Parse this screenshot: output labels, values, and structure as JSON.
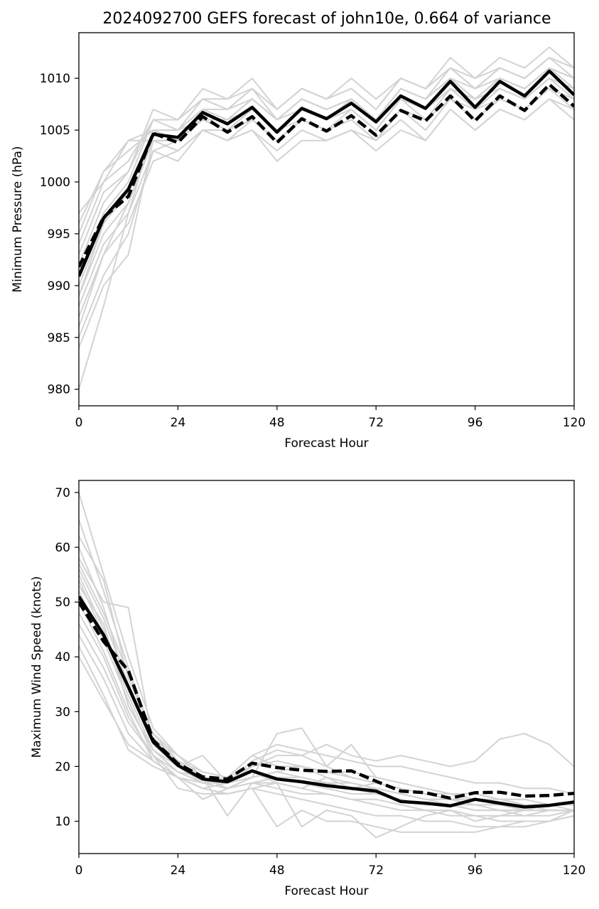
{
  "figure": {
    "title": "2024092700 GEFS forecast of john10e, 0.664 of variance"
  },
  "chart_data": [
    {
      "type": "line",
      "title": "2024092700 GEFS forecast of john10e, 0.664 of variance",
      "xlabel": "Forecast Hour",
      "ylabel": "Minimum Pressure (hPa)",
      "xlim": [
        0,
        120
      ],
      "ylim": [
        978.4,
        1014.4
      ],
      "xticks": [
        0,
        24,
        48,
        72,
        96,
        120
      ],
      "yticks": [
        980,
        985,
        990,
        995,
        1000,
        1005,
        1010
      ],
      "grid": false,
      "colors": {
        "members": "#d3d3d3",
        "mean": "#000000",
        "control": "#000000"
      },
      "x": [
        0,
        6,
        12,
        18,
        24,
        30,
        36,
        42,
        48,
        54,
        60,
        66,
        72,
        78,
        84,
        90,
        96,
        102,
        108,
        114,
        120
      ],
      "members": [
        [
          980,
          988,
          997,
          1005,
          1004,
          1006,
          1005,
          1006,
          1004,
          1006,
          1005,
          1006,
          1004,
          1007,
          1006,
          1008,
          1006,
          1008,
          1007,
          1009,
          1007
        ],
        [
          984,
          990,
          993,
          1004,
          1003,
          1005,
          1004,
          1005,
          1002,
          1004,
          1004,
          1005,
          1003,
          1005,
          1004,
          1007,
          1005,
          1007,
          1006,
          1008,
          1006
        ],
        [
          985,
          991,
          995,
          1003,
          1002,
          1005,
          1004,
          1005,
          1003,
          1005,
          1004,
          1005,
          1004,
          1006,
          1004,
          1007,
          1005,
          1007,
          1006,
          1008,
          1007
        ],
        [
          987,
          993,
          996,
          1002,
          1003,
          1005,
          1005,
          1006,
          1004,
          1006,
          1005,
          1006,
          1004,
          1007,
          1005,
          1008,
          1006,
          1008,
          1007,
          1009,
          1008
        ],
        [
          988,
          994,
          997,
          1003,
          1004,
          1006,
          1005,
          1007,
          1005,
          1007,
          1006,
          1007,
          1005,
          1008,
          1007,
          1009,
          1007,
          1009,
          1008,
          1010,
          1008
        ],
        [
          989,
          995,
          998,
          1004,
          1004,
          1007,
          1006,
          1007,
          1005,
          1007,
          1006,
          1007,
          1005,
          1008,
          1007,
          1010,
          1008,
          1010,
          1009,
          1011,
          1009
        ],
        [
          990,
          996,
          999,
          1005,
          1005,
          1007,
          1006,
          1008,
          1006,
          1008,
          1007,
          1008,
          1006,
          1009,
          1008,
          1010,
          1008,
          1010,
          1009,
          1011,
          1010
        ],
        [
          991,
          997,
          1000,
          1006,
          1005,
          1008,
          1007,
          1008,
          1006,
          1008,
          1007,
          1008,
          1006,
          1009,
          1008,
          1011,
          1009,
          1011,
          1010,
          1012,
          1010
        ],
        [
          992,
          998,
          1001,
          1006,
          1006,
          1008,
          1007,
          1009,
          1007,
          1009,
          1008,
          1009,
          1007,
          1010,
          1009,
          1011,
          1009,
          1011,
          1010,
          1012,
          1011
        ],
        [
          993,
          999,
          1001,
          1007,
          1006,
          1009,
          1008,
          1009,
          1007,
          1009,
          1008,
          1010,
          1008,
          1010,
          1009,
          1012,
          1010,
          1012,
          1011,
          1013,
          1011
        ],
        [
          994,
          1000,
          1002,
          1006,
          1006,
          1008,
          1008,
          1010,
          1007,
          1009,
          1008,
          1009,
          1007,
          1010,
          1009,
          1011,
          1010,
          1011,
          1010,
          1012,
          1011
        ],
        [
          995,
          1001,
          1003,
          1005,
          1005,
          1007,
          1007,
          1009,
          1006,
          1008,
          1007,
          1008,
          1006,
          1009,
          1008,
          1010,
          1009,
          1010,
          1009,
          1011,
          1010
        ],
        [
          996,
          1001,
          1004,
          1005,
          1005,
          1006,
          1006,
          1008,
          1006,
          1007,
          1006,
          1008,
          1006,
          1009,
          1008,
          1010,
          1008,
          1010,
          1009,
          1011,
          1009
        ],
        [
          997,
          1000,
          1004,
          1004,
          1004,
          1006,
          1005,
          1007,
          1005,
          1007,
          1006,
          1007,
          1005,
          1008,
          1007,
          1009,
          1008,
          1009,
          1008,
          1010,
          1009
        ],
        [
          986,
          993,
          998,
          1004,
          1003,
          1005,
          1004,
          1006,
          1004,
          1006,
          1005,
          1006,
          1004,
          1007,
          1006,
          1008,
          1007,
          1008,
          1007,
          1009,
          1008
        ],
        [
          989,
          996,
          999,
          1004,
          1004,
          1006,
          1005,
          1007,
          1005,
          1006,
          1005,
          1007,
          1005,
          1008,
          1006,
          1009,
          1007,
          1009,
          1008,
          1010,
          1008
        ]
      ],
      "series": [
        {
          "name": "",
          "style": "solid",
          "values": [
            990.9,
            996.5,
            999.3,
            1004.6,
            1004.3,
            1006.7,
            1005.6,
            1007.2,
            1004.8,
            1007.1,
            1006.1,
            1007.6,
            1005.8,
            1008.3,
            1007.1,
            1009.7,
            1007.2,
            1009.7,
            1008.3,
            1010.7,
            1008.4
          ]
        },
        {
          "name": "",
          "style": "dashed",
          "values": [
            991.8,
            996.6,
            998.6,
            1004.7,
            1003.8,
            1006.3,
            1004.8,
            1006.3,
            1003.8,
            1006.1,
            1004.9,
            1006.4,
            1004.5,
            1006.9,
            1005.9,
            1008.3,
            1005.9,
            1008.3,
            1006.9,
            1009.4,
            1007.3
          ]
        }
      ]
    },
    {
      "type": "line",
      "title": "",
      "xlabel": "Forecast Hour",
      "ylabel": "Maximum Wind Speed (knots)",
      "xlim": [
        0,
        120
      ],
      "ylim": [
        4.1,
        72.2
      ],
      "xticks": [
        0,
        24,
        48,
        72,
        96,
        120
      ],
      "yticks": [
        10,
        20,
        30,
        40,
        50,
        60,
        70
      ],
      "grid": false,
      "colors": {
        "members": "#d3d3d3",
        "mean": "#000000",
        "control": "#000000"
      },
      "x": [
        0,
        6,
        12,
        18,
        24,
        30,
        36,
        42,
        48,
        54,
        60,
        66,
        72,
        78,
        84,
        90,
        96,
        102,
        108,
        114,
        120
      ],
      "members": [
        [
          70,
          55,
          40,
          27,
          22,
          18,
          17,
          19,
          17,
          16,
          15,
          14,
          14,
          13,
          12,
          12,
          11,
          11,
          11,
          12,
          12
        ],
        [
          65,
          52,
          38,
          25,
          20,
          17,
          16,
          18,
          26,
          27,
          20,
          18,
          17,
          16,
          15,
          14,
          14,
          13,
          13,
          13,
          12
        ],
        [
          62,
          54,
          36,
          26,
          21,
          19,
          18,
          22,
          24,
          23,
          22,
          21,
          20,
          20,
          19,
          18,
          17,
          17,
          16,
          16,
          15
        ],
        [
          60,
          49,
          34,
          25,
          22,
          18,
          17,
          21,
          23,
          22,
          24,
          22,
          21,
          22,
          21,
          20,
          21,
          25,
          26,
          24,
          20
        ],
        [
          58,
          50,
          49,
          24,
          20,
          17,
          17,
          20,
          22,
          22,
          20,
          24,
          18,
          17,
          16,
          15,
          15,
          14,
          14,
          13,
          13
        ],
        [
          56,
          47,
          35,
          25,
          21,
          18,
          17,
          19,
          18,
          17,
          17,
          16,
          15,
          14,
          13,
          13,
          12,
          12,
          11,
          11,
          12
        ],
        [
          55,
          45,
          34,
          24,
          20,
          18,
          16,
          18,
          19,
          20,
          18,
          17,
          16,
          15,
          14,
          14,
          13,
          13,
          12,
          12,
          12
        ],
        [
          54,
          44,
          33,
          23,
          19,
          17,
          16,
          17,
          16,
          15,
          15,
          14,
          13,
          12,
          12,
          11,
          11,
          10,
          10,
          10,
          11
        ],
        [
          52,
          43,
          32,
          22,
          18,
          16,
          15,
          16,
          15,
          14,
          13,
          12,
          11,
          11,
          10,
          10,
          9,
          9,
          9,
          10,
          11
        ],
        [
          50,
          41,
          30,
          21,
          18,
          16,
          15,
          16,
          9,
          12,
          10,
          10,
          9,
          8,
          8,
          8,
          8,
          9,
          10,
          10,
          12
        ],
        [
          48,
          40,
          29,
          22,
          16,
          15,
          15,
          16,
          17,
          9,
          12,
          11,
          7,
          9,
          11,
          12,
          10,
          11,
          12,
          13,
          13
        ],
        [
          46,
          38,
          28,
          22,
          19,
          18,
          11,
          17,
          18,
          18,
          17,
          16,
          17,
          16,
          15,
          14,
          14,
          13,
          13,
          12,
          12
        ],
        [
          44,
          36,
          26,
          21,
          18,
          14,
          16,
          17,
          17,
          16,
          18,
          16,
          16,
          15,
          14,
          13,
          13,
          12,
          12,
          12,
          12
        ],
        [
          42,
          33,
          23,
          20,
          18,
          17,
          18,
          22,
          20,
          20,
          19,
          19,
          18,
          17,
          16,
          15,
          15,
          14,
          14,
          13,
          13
        ],
        [
          40,
          32,
          24,
          21,
          18,
          16,
          17,
          19,
          18,
          17,
          16,
          15,
          15,
          14,
          13,
          13,
          12,
          12,
          12,
          12,
          12
        ],
        [
          57,
          48,
          37,
          26,
          22,
          19,
          18,
          20,
          21,
          20,
          19,
          18,
          17,
          16,
          15,
          15,
          14,
          14,
          13,
          13,
          13
        ],
        [
          53,
          46,
          31,
          23,
          20,
          22,
          17,
          18,
          19,
          18,
          17,
          17,
          16,
          15,
          14,
          14,
          13,
          13,
          12,
          12,
          12
        ]
      ],
      "series": [
        {
          "name": "",
          "style": "solid",
          "values": [
            51,
            44,
            34.5,
            24.5,
            20.2,
            17.7,
            17.2,
            19.2,
            17.7,
            17.2,
            16.5,
            16,
            15.5,
            13.6,
            13.3,
            12.8,
            14,
            13.3,
            12.6,
            12.9,
            13.5
          ]
        },
        {
          "name": "",
          "style": "dashed",
          "values": [
            50,
            42.8,
            37.5,
            24.8,
            20.5,
            18.1,
            17.7,
            20.6,
            19.8,
            19.3,
            19.1,
            19.2,
            17.3,
            15.5,
            15.2,
            14.2,
            15.2,
            15.3,
            14.6,
            14.7,
            15.1
          ]
        }
      ]
    }
  ]
}
